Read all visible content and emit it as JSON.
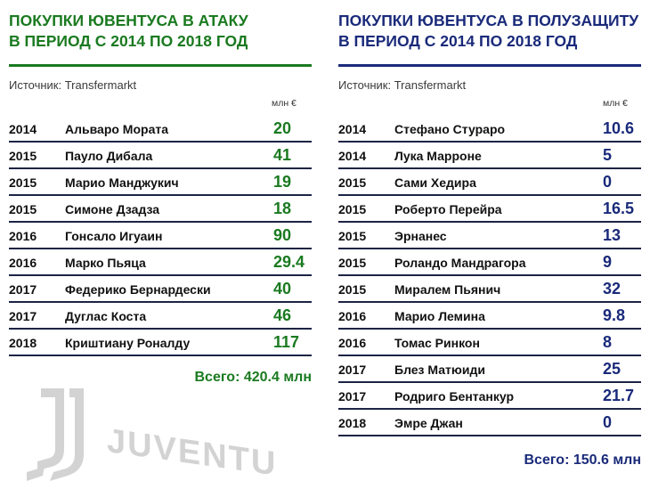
{
  "colors": {
    "attack": "#1a7a20",
    "midfield": "#1a2a7a",
    "divider": "#1c2444",
    "watermark": "#d3d3d3"
  },
  "left": {
    "title_lines": [
      "ПОКУПКИ ЮВЕНТУСА В АТАКУ",
      "В ПЕРИОД С 2014 ПО 2018 ГОД"
    ],
    "source": "Источник: Transfermarkt",
    "units_label": "млн  €",
    "rows": [
      {
        "year": "2014",
        "name": "Альваро Мората",
        "value": "20"
      },
      {
        "year": "2015",
        "name": "Пауло Дибала",
        "value": "41"
      },
      {
        "year": "2015",
        "name": "Марио Манджукич",
        "value": "19"
      },
      {
        "year": "2015",
        "name": "Симоне Дзадза",
        "value": "18"
      },
      {
        "year": "2016",
        "name": "Гонсало Игуаин",
        "value": "90"
      },
      {
        "year": "2016",
        "name": "Марко Пьяца",
        "value": "29.4"
      },
      {
        "year": "2017",
        "name": "Федерико Бернардески",
        "value": "40"
      },
      {
        "year": "2017",
        "name": "Дуглас Коста",
        "value": "46"
      },
      {
        "year": "2018",
        "name": "Криштиану Роналду",
        "value": "117"
      }
    ],
    "total": "Всего: 420.4 млн"
  },
  "right": {
    "title_lines": [
      "ПОКУПКИ ЮВЕНТУСА В ПОЛУЗАЩИТУ",
      "В ПЕРИОД С 2014 ПО 2018 ГОД"
    ],
    "source": "Источник: Transfermarkt",
    "units_label": "млн  €",
    "rows": [
      {
        "year": "2014",
        "name": "Стефано Стураро",
        "value": "10.6"
      },
      {
        "year": "2014",
        "name": "Лука Марроне",
        "value": "5"
      },
      {
        "year": "2015",
        "name": "Сами Хедира",
        "value": "0"
      },
      {
        "year": "2015",
        "name": "Роберто Перейра",
        "value": "16.5"
      },
      {
        "year": "2015",
        "name": "Эрнанес",
        "value": "13"
      },
      {
        "year": "2015",
        "name": "Роландо Мандрагора",
        "value": "9"
      },
      {
        "year": "2015",
        "name": "Миралем Пьянич",
        "value": "32"
      },
      {
        "year": "2016",
        "name": "Марио Лемина",
        "value": "9.8"
      },
      {
        "year": "2016",
        "name": "Томас Ринкон",
        "value": "8"
      },
      {
        "year": "2017",
        "name": "Блез Матюиди",
        "value": "25"
      },
      {
        "year": "2017",
        "name": "Родриго Бентанкур",
        "value": "21.7"
      },
      {
        "year": "2018",
        "name": "Эмре Джан",
        "value": "0"
      }
    ],
    "total": "Всего: 150.6 млн"
  },
  "watermark": {
    "text": "JUVENTUS"
  }
}
